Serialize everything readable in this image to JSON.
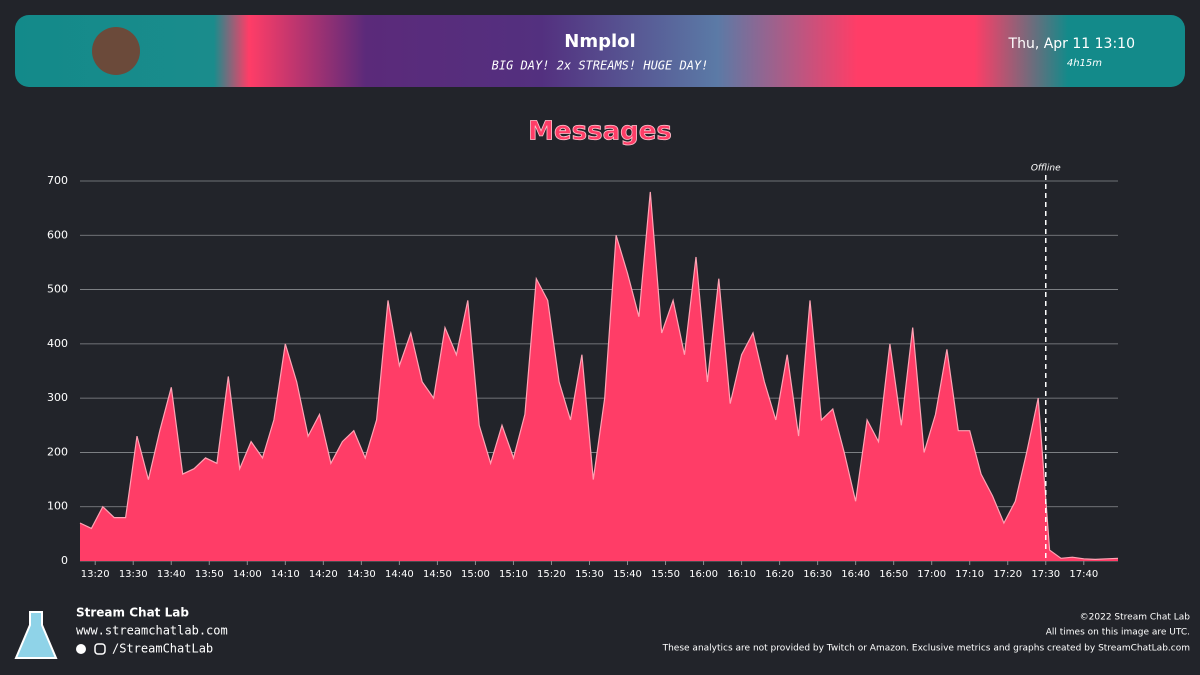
{
  "header": {
    "name": "Nmplol",
    "subtitle": "BIG DAY! 2x STREAMS! HUGE DAY!",
    "date": "Thu, Apr 11 13:10",
    "duration": "4h15m"
  },
  "chart_data": {
    "type": "area",
    "title": "Messages",
    "color": "#ff3d67",
    "line_color": "#ffa3b4",
    "grid": true,
    "x": [
      796,
      799,
      802,
      805,
      808,
      811,
      814,
      817,
      820,
      823,
      826,
      829,
      832,
      835,
      838,
      841,
      844,
      847,
      850,
      853,
      856,
      859,
      862,
      865,
      868,
      871,
      874,
      877,
      880,
      883,
      886,
      889,
      892,
      895,
      898,
      901,
      904,
      907,
      910,
      913,
      916,
      919,
      922,
      925,
      928,
      931,
      934,
      937,
      940,
      943,
      946,
      949,
      952,
      955,
      958,
      961,
      964,
      967,
      970,
      973,
      976,
      979,
      982,
      985,
      988,
      991,
      994,
      997,
      1000,
      1003,
      1006,
      1009,
      1012,
      1015,
      1018,
      1021,
      1024,
      1027,
      1030,
      1033,
      1036,
      1039,
      1042,
      1045,
      1048,
      1051,
      1054,
      1057,
      1060,
      1063,
      1066,
      1069
    ],
    "values": [
      70,
      60,
      100,
      80,
      80,
      230,
      150,
      240,
      320,
      160,
      170,
      190,
      180,
      340,
      170,
      220,
      190,
      260,
      400,
      330,
      230,
      270,
      180,
      220,
      240,
      190,
      260,
      480,
      360,
      420,
      330,
      300,
      430,
      380,
      480,
      250,
      180,
      250,
      190,
      270,
      520,
      480,
      330,
      260,
      380,
      150,
      300,
      600,
      530,
      450,
      680,
      420,
      480,
      380,
      560,
      330,
      520,
      290,
      380,
      420,
      330,
      260,
      380,
      230,
      480,
      260,
      280,
      200,
      110,
      260,
      220,
      400,
      250,
      430,
      200,
      270,
      390,
      240,
      240,
      160,
      120,
      70,
      110,
      200,
      300,
      20,
      5,
      7,
      4,
      3,
      4,
      5
    ],
    "xlim": [
      796,
      1069
    ],
    "ylim": [
      0,
      700
    ],
    "yticks": [
      0,
      100,
      200,
      300,
      400,
      500,
      600,
      700
    ],
    "xticks": [
      {
        "value": 800,
        "label": "13:20"
      },
      {
        "value": 810,
        "label": "13:30"
      },
      {
        "value": 820,
        "label": "13:40"
      },
      {
        "value": 830,
        "label": "13:50"
      },
      {
        "value": 840,
        "label": "14:00"
      },
      {
        "value": 850,
        "label": "14:10"
      },
      {
        "value": 860,
        "label": "14:20"
      },
      {
        "value": 870,
        "label": "14:30"
      },
      {
        "value": 880,
        "label": "14:40"
      },
      {
        "value": 890,
        "label": "14:50"
      },
      {
        "value": 900,
        "label": "15:00"
      },
      {
        "value": 910,
        "label": "15:10"
      },
      {
        "value": 920,
        "label": "15:20"
      },
      {
        "value": 930,
        "label": "15:30"
      },
      {
        "value": 940,
        "label": "15:40"
      },
      {
        "value": 950,
        "label": "15:50"
      },
      {
        "value": 960,
        "label": "16:00"
      },
      {
        "value": 970,
        "label": "16:10"
      },
      {
        "value": 980,
        "label": "16:20"
      },
      {
        "value": 990,
        "label": "16:30"
      },
      {
        "value": 1000,
        "label": "16:40"
      },
      {
        "value": 1010,
        "label": "16:50"
      },
      {
        "value": 1020,
        "label": "17:00"
      },
      {
        "value": 1030,
        "label": "17:10"
      },
      {
        "value": 1040,
        "label": "17:20"
      },
      {
        "value": 1050,
        "label": "17:30"
      },
      {
        "value": 1060,
        "label": "17:40"
      }
    ],
    "annotations": [
      {
        "x": 1050,
        "text": "Offline"
      }
    ]
  },
  "footer": {
    "brand": "Stream Chat Lab",
    "url": "www.streamchatlab.com",
    "handle": "/StreamChatLab",
    "copyright": "©2022 Stream Chat Lab",
    "utc_note": "All times on this image are UTC.",
    "disclaimer": "These analytics are not provided by Twitch or Amazon. Exclusive metrics and graphs created by StreamChatLab.com"
  }
}
